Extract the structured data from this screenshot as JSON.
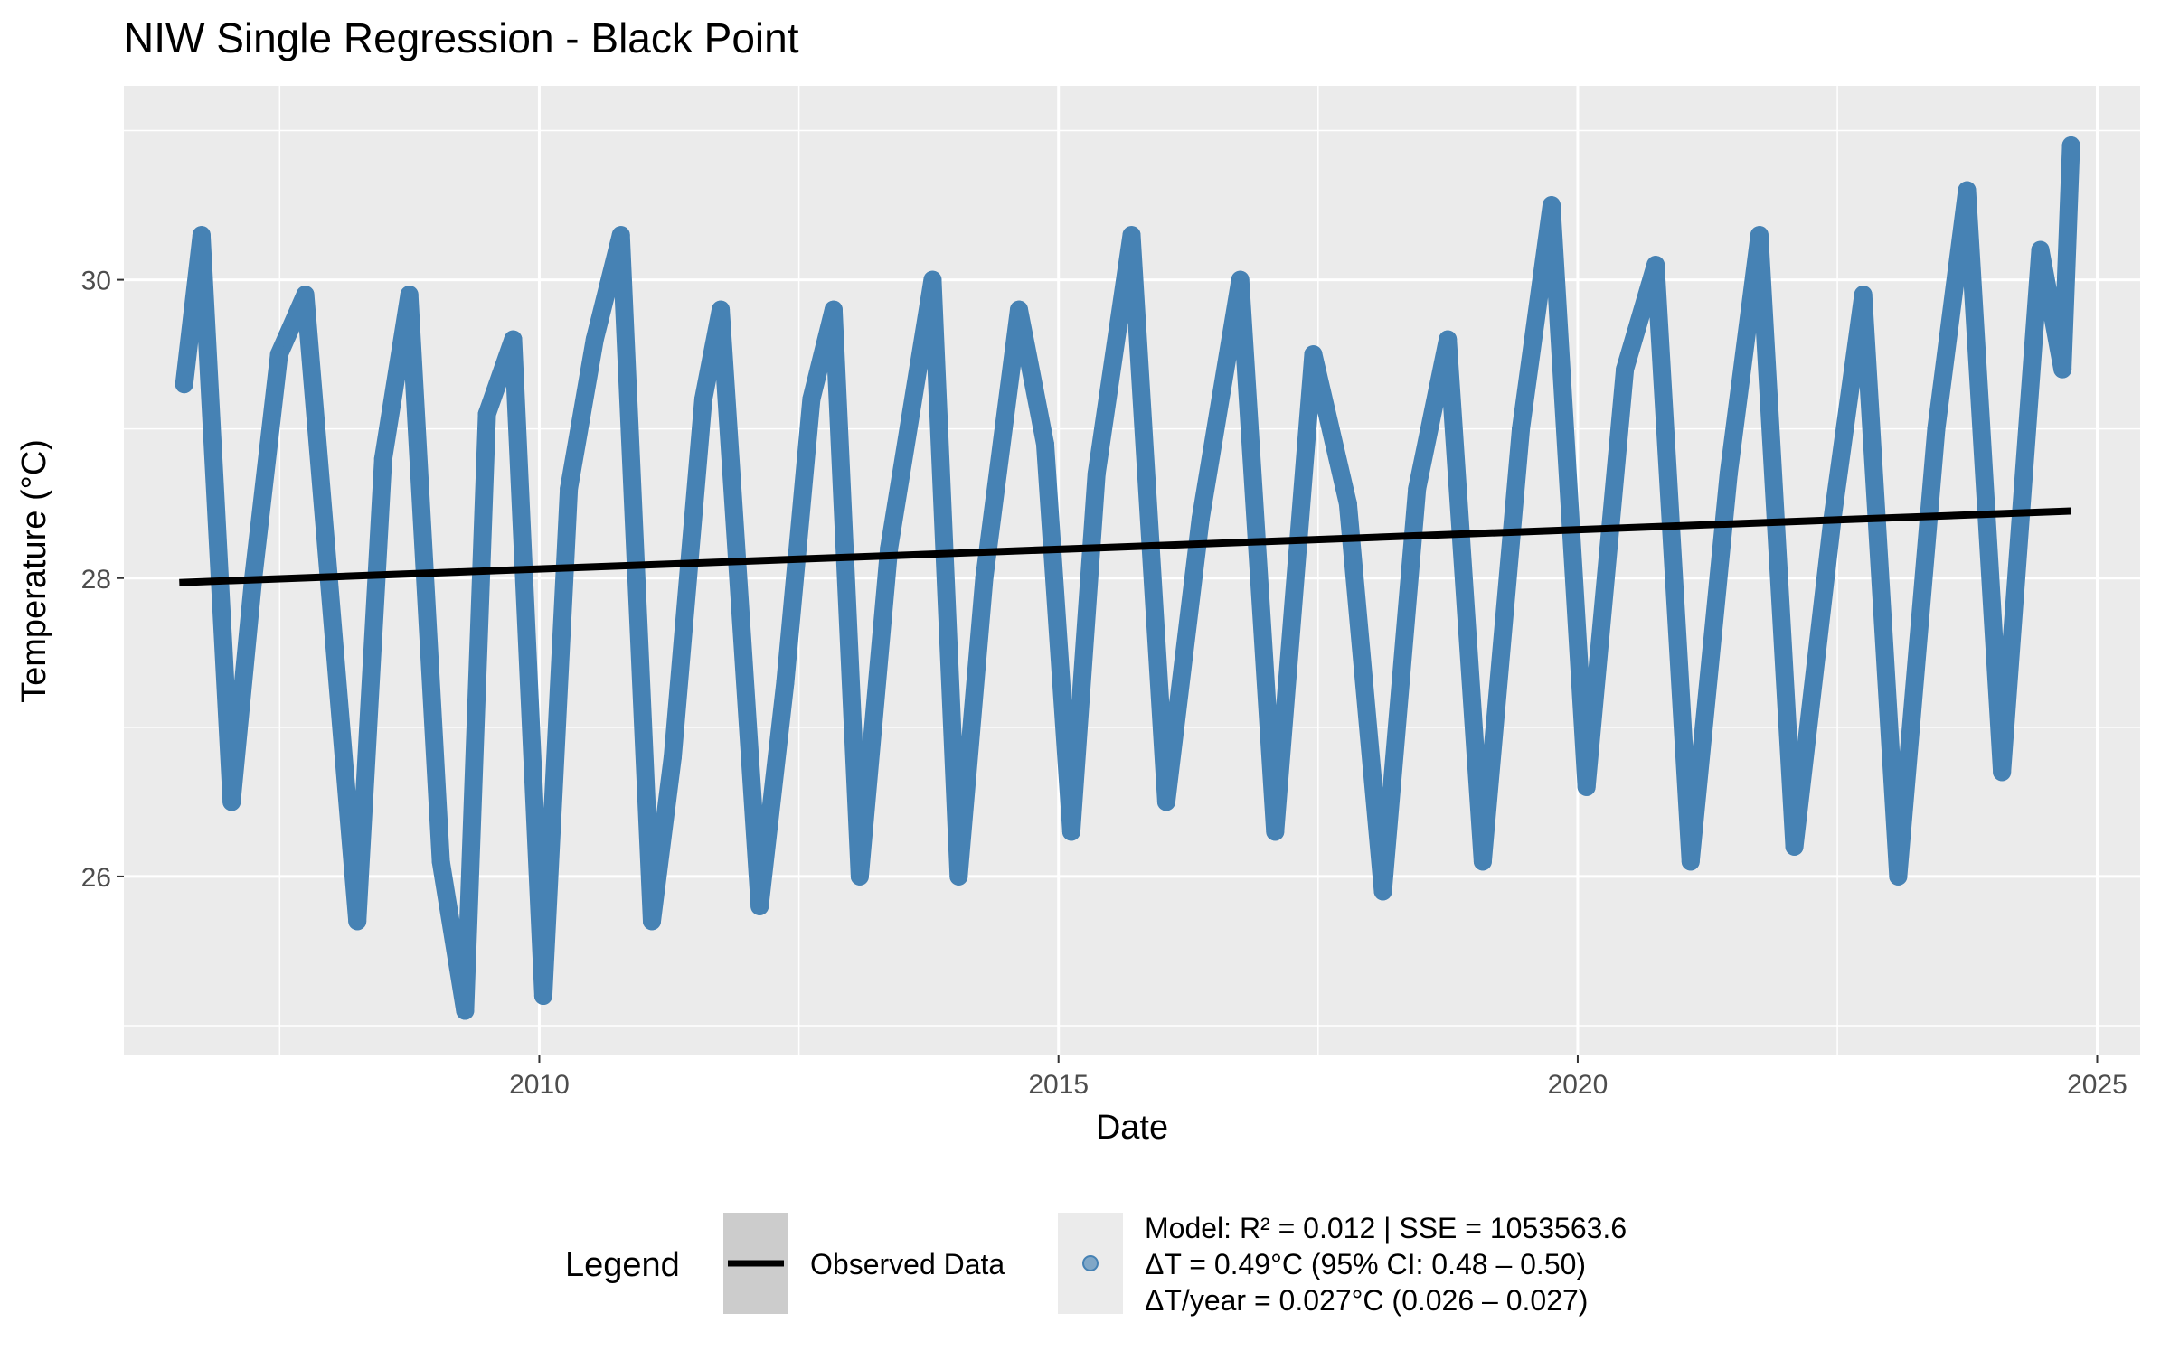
{
  "chart_data": {
    "type": "line",
    "title": "NIW Single Regression - Black Point",
    "xlabel": "Date",
    "ylabel": "Temperature (°C)",
    "xlim": [
      "2006-01-01",
      "2025-06-01"
    ],
    "ylim": [
      24.8,
      31.3
    ],
    "x_ticks": [
      {
        "value": "2010-01-01",
        "label": "2010"
      },
      {
        "value": "2015-01-01",
        "label": "2015"
      },
      {
        "value": "2020-01-01",
        "label": "2020"
      },
      {
        "value": "2025-01-01",
        "label": "2025"
      }
    ],
    "y_ticks": [
      {
        "value": 26,
        "label": "26"
      },
      {
        "value": 28,
        "label": "28"
      },
      {
        "value": 30,
        "label": "30"
      }
    ],
    "grid": true,
    "legend_position": "bottom",
    "legend_title": "Legend",
    "series": [
      {
        "name": "Observed Data",
        "kind": "observed",
        "color": "#4682B4",
        "x": [
          "2006-08-01",
          "2006-10-01",
          "2007-01-15",
          "2007-04-01",
          "2007-07-01",
          "2007-10-01",
          "2008-04-01",
          "2008-07-01",
          "2008-10-01",
          "2009-01-20",
          "2009-04-15",
          "2009-07-01",
          "2009-10-01",
          "2010-01-15",
          "2010-04-15",
          "2010-07-15",
          "2010-10-15",
          "2011-02-01",
          "2011-04-15",
          "2011-08-01",
          "2011-10-01",
          "2012-02-15",
          "2012-05-15",
          "2012-08-15",
          "2012-11-01",
          "2013-02-01",
          "2013-05-15",
          "2013-10-15",
          "2014-01-15",
          "2014-04-15",
          "2014-08-15",
          "2014-11-15",
          "2015-02-15",
          "2015-05-15",
          "2015-09-15",
          "2016-01-15",
          "2016-05-15",
          "2016-10-01",
          "2017-02-01",
          "2017-06-15",
          "2017-10-15",
          "2018-02-15",
          "2018-06-15",
          "2018-10-01",
          "2019-02-01",
          "2019-06-15",
          "2019-10-01",
          "2020-02-01",
          "2020-06-15",
          "2020-10-01",
          "2021-02-01",
          "2021-06-15",
          "2021-10-01",
          "2022-02-01",
          "2022-06-15",
          "2022-10-01",
          "2023-02-01",
          "2023-06-15",
          "2023-10-01",
          "2024-02-01",
          "2024-06-15",
          "2024-09-01",
          "2024-10-01"
        ],
        "values": [
          29.3,
          30.3,
          26.5,
          28.0,
          29.5,
          29.9,
          25.7,
          28.8,
          29.9,
          26.1,
          25.1,
          29.1,
          29.6,
          25.2,
          28.6,
          29.6,
          30.3,
          25.7,
          26.8,
          29.2,
          29.8,
          25.8,
          27.3,
          29.2,
          29.8,
          26.0,
          28.2,
          30.0,
          26.0,
          28.0,
          29.8,
          28.9,
          26.3,
          28.7,
          30.3,
          26.5,
          28.4,
          30.0,
          26.3,
          29.5,
          28.5,
          25.9,
          28.6,
          29.6,
          26.1,
          29.0,
          30.5,
          26.6,
          29.4,
          30.1,
          26.1,
          28.7,
          30.3,
          26.2,
          28.4,
          29.9,
          26.0,
          29.0,
          30.6,
          26.7,
          30.2,
          29.4,
          30.9
        ]
      },
      {
        "name": "",
        "kind": "regression",
        "color": "#000000",
        "x": [
          "2006-07-15",
          "2024-10-01"
        ],
        "values": [
          27.97,
          28.45
        ]
      }
    ],
    "annotation_lines": [
      "Model: R² = 0.012 | SSE = 1053563.6",
      "ΔT = 0.49°C (95% CI: 0.48 – 0.50)",
      "ΔT/year = 0.027°C (0.026 – 0.027)"
    ],
    "colors": {
      "panel_background": "#EBEBEB",
      "grid": "#FFFFFF",
      "observed": "#4682B4",
      "fit": "#000000",
      "legend_key_background": "#CCCCCC",
      "legend_key_background_light": "#EBEBEB"
    }
  }
}
